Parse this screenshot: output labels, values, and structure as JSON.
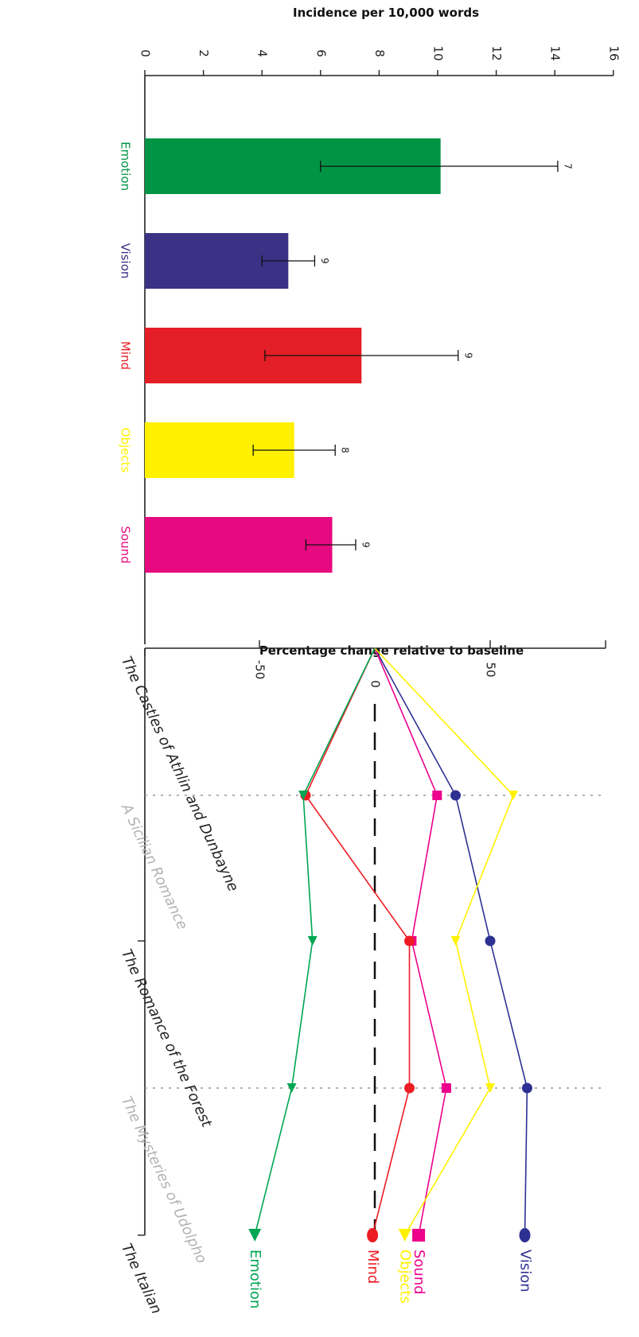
{
  "chart_data": [
    {
      "type": "bar",
      "title": "Incidence per 10,000 words",
      "orientation": "rotated 90° clockwise",
      "xlabel": "",
      "ylabel": "",
      "ylim": [
        0,
        16
      ],
      "yticks": [
        "0",
        "2",
        "4",
        "6",
        "8",
        "10",
        "12",
        "14",
        "16"
      ],
      "grid": false,
      "categories": [
        "Emotion",
        "Vision",
        "Mind",
        "Objects",
        "Sound"
      ],
      "values": [
        10.1,
        4.9,
        7.4,
        5.1,
        6.4
      ],
      "error_low": [
        6.0,
        4.0,
        4.1,
        3.7,
        5.5
      ],
      "error_high": [
        14.1,
        5.8,
        10.7,
        6.5,
        7.2
      ],
      "error_labels": [
        "7",
        "9",
        "9",
        "8",
        "9"
      ],
      "colors": [
        "#009444",
        "#3b3285",
        "#e41e26",
        "#fff100",
        "#e6097f"
      ]
    },
    {
      "type": "line",
      "title": "Percentage change relative to baseline",
      "orientation": "rotated 90° clockwise",
      "x": [
        "The Castles of Athlin and Dunbayne",
        "A Sicilian Romance",
        "The Romance of the Forest",
        "The Mysteries of Udolpho",
        "The Italian"
      ],
      "ylim": [
        -100,
        100
      ],
      "yticks": [
        "-50",
        "0",
        "50"
      ],
      "baseline_label": "0",
      "series": [
        {
          "name": "Vision",
          "values": [
            0,
            35,
            50,
            66,
            65
          ],
          "color": "#2e3192",
          "marker": "circle"
        },
        {
          "name": "Sound",
          "values": [
            0,
            27,
            16,
            31,
            19
          ],
          "color": "#ec008c",
          "marker": "square"
        },
        {
          "name": "Objects",
          "values": [
            0,
            60,
            35,
            50,
            13
          ],
          "color": "#fff200",
          "marker": "triangle"
        },
        {
          "name": "Mind",
          "values": [
            0,
            -30,
            15,
            15,
            -1
          ],
          "color": "#ed1c24",
          "marker": "circle"
        },
        {
          "name": "Emotion",
          "values": [
            0,
            -31,
            -27,
            -36,
            -52
          ],
          "color": "#00a651",
          "marker": "triangle"
        }
      ],
      "category_label_colors": [
        "#222222",
        "#b3b3b3",
        "#222222",
        "#b3b3b3",
        "#222222"
      ],
      "dotted_gridlines_at": [
        "A Sicilian Romance",
        "The Mysteries of Udolpho"
      ]
    }
  ]
}
